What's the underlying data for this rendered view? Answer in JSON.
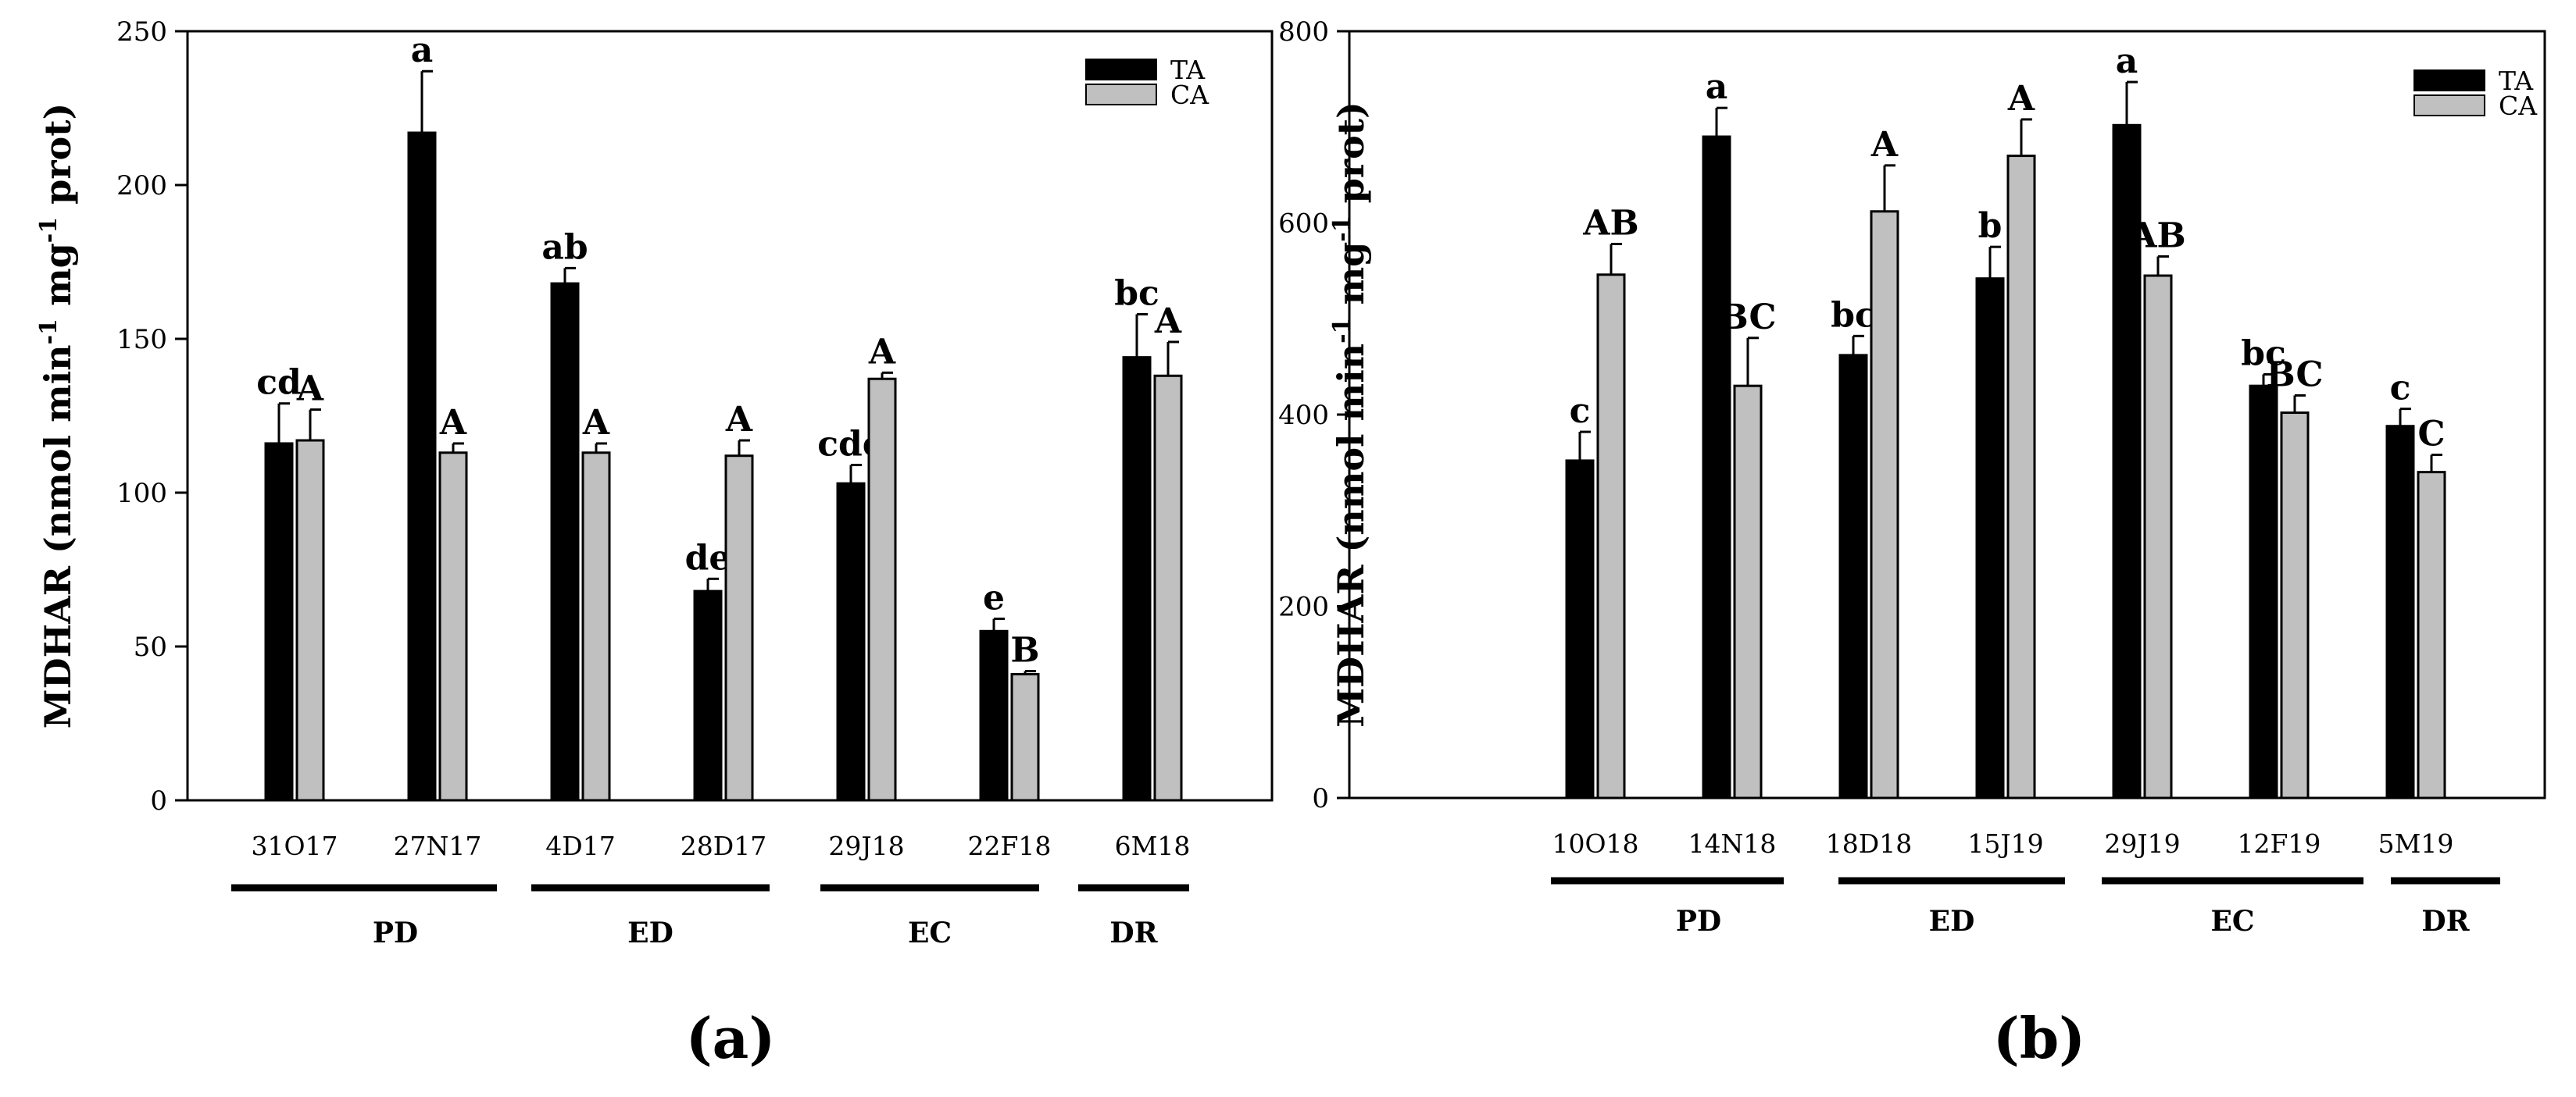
{
  "chart_data": [
    {
      "type": "bar",
      "panel_label": "(a)",
      "ylabel": "MDHAR (nmol min⁻¹ mg⁻¹ prot)",
      "ylabel_main": "MDHAR (nmol min",
      "ylabel_mid": " mg",
      "ylabel_end": " prot)",
      "ylabel_sup": "-1",
      "ylim": [
        0,
        250
      ],
      "yticks": [
        0,
        50,
        100,
        150,
        200,
        250
      ],
      "categories": [
        "31O17",
        "27N17",
        "4D17",
        "28D17",
        "29J18",
        "22F18",
        "6M18"
      ],
      "series": [
        {
          "name": "TA",
          "color": "#000000",
          "values": [
            116,
            217,
            168,
            68,
            103,
            55,
            144
          ],
          "errors": [
            13,
            20,
            5,
            4,
            6,
            4,
            14
          ],
          "letters": [
            "cd",
            "a",
            "ab",
            "de",
            "cde",
            "e",
            "bc"
          ]
        },
        {
          "name": "CA",
          "color": "#c0c0c0",
          "values": [
            117,
            113,
            113,
            112,
            137,
            41,
            138
          ],
          "errors": [
            10,
            3,
            3,
            5,
            2,
            1,
            11
          ],
          "letters": [
            "A",
            "A",
            "A",
            "A",
            "A",
            "B",
            "A"
          ]
        }
      ],
      "groups": [
        {
          "label": "PD",
          "from": 0,
          "to": 1
        },
        {
          "label": "ED",
          "from": 2,
          "to": 3
        },
        {
          "label": "EC",
          "from": 4,
          "to": 5
        },
        {
          "label": "DR",
          "from": 6,
          "to": 6
        }
      ],
      "legend": "top-right"
    },
    {
      "type": "bar",
      "panel_label": "(b)",
      "ylabel": "MDHAR (nmol min⁻¹ mg⁻¹ prot)",
      "ylabel_main": "MDHAR (nmol min",
      "ylabel_mid": " mg",
      "ylabel_end": " prot)",
      "ylabel_sup": "-1",
      "ylim": [
        0,
        800
      ],
      "yticks": [
        0,
        200,
        400,
        600,
        800
      ],
      "categories": [
        "10O18",
        "14N18",
        "18D18",
        "15J19",
        "29J19",
        "12F19",
        "5M19"
      ],
      "series": [
        {
          "name": "TA",
          "color": "#000000",
          "values": [
            352,
            690,
            462,
            542,
            702,
            430,
            388
          ],
          "errors": [
            30,
            30,
            20,
            33,
            45,
            12,
            18
          ],
          "letters": [
            "c",
            "a",
            "bc",
            "b",
            "a",
            "bc",
            "c"
          ]
        },
        {
          "name": "CA",
          "color": "#c0c0c0",
          "values": [
            546,
            430,
            612,
            670,
            545,
            402,
            340
          ],
          "errors": [
            32,
            50,
            48,
            38,
            20,
            18,
            18
          ],
          "letters": [
            "AB",
            "BC",
            "A",
            "A",
            "AB",
            "BC",
            "C"
          ]
        }
      ],
      "groups": [
        {
          "label": "PD",
          "from": 0,
          "to": 1
        },
        {
          "label": "ED",
          "from": 2,
          "to": 3
        },
        {
          "label": "EC",
          "from": 4,
          "to": 5
        },
        {
          "label": "DR",
          "from": 6,
          "to": 6
        }
      ],
      "legend": "top-right"
    }
  ]
}
